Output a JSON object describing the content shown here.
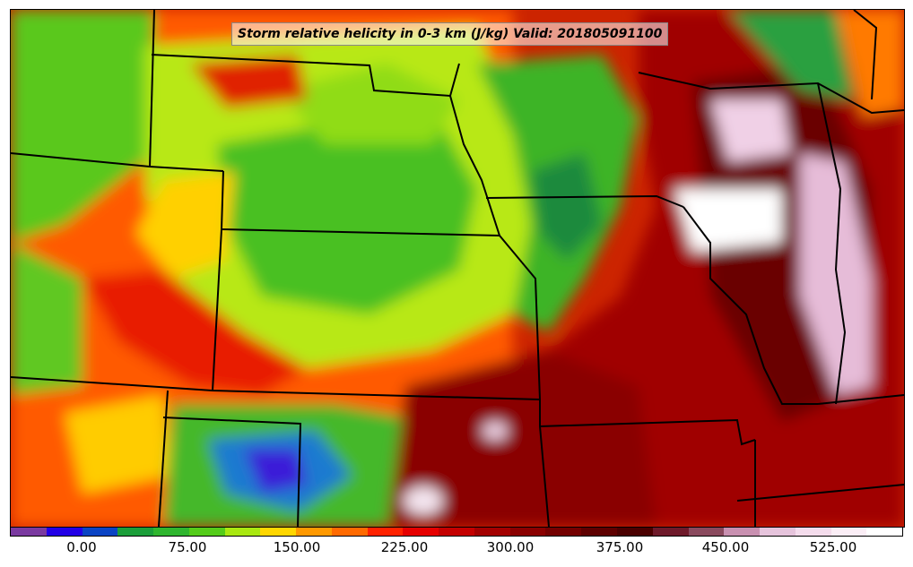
{
  "title": "Storm relative helicity in 0-3 km (J/kg) Valid: 201805091100",
  "colorbar": {
    "colors": [
      "#7a3aa0",
      "#2200e6",
      "#0a44c4",
      "#1b9e3a",
      "#2fb52f",
      "#54cc1a",
      "#a9e810",
      "#ffd700",
      "#ff9900",
      "#ff6a00",
      "#ff2200",
      "#e60000",
      "#c40000",
      "#a30000",
      "#8a0000",
      "#740000",
      "#5e0000",
      "#4a0000",
      "#6e1a2a",
      "#8a4a5e",
      "#c890b0",
      "#e6c4dc",
      "#f4dcec",
      "#fbeef6",
      "#ffffff"
    ],
    "tick_labels": [
      "0.00",
      "75.00",
      "150.00",
      "225.00",
      "300.00",
      "375.00",
      "450.00",
      "525.00"
    ]
  }
}
